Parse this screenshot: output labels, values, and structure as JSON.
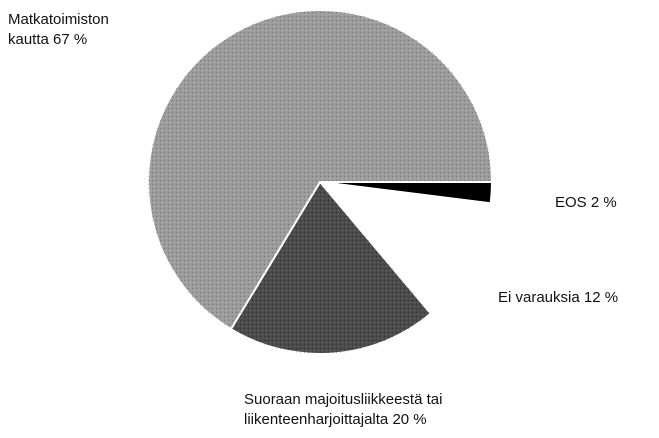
{
  "chart_data": {
    "type": "pie",
    "categories": [
      "EOS",
      "Ei varauksia",
      "Suoraan majoitusliikkeestä tai liikenteenharjoittajalta",
      "Matkatoimiston kautta"
    ],
    "values": [
      2,
      12,
      20,
      67
    ],
    "value_labels": [
      "2 %",
      "12 %",
      "20 %",
      "67 %"
    ],
    "colors": [
      "#000000",
      "#ffffff",
      "#4a4a4a",
      "#9c9c9c"
    ]
  }
}
